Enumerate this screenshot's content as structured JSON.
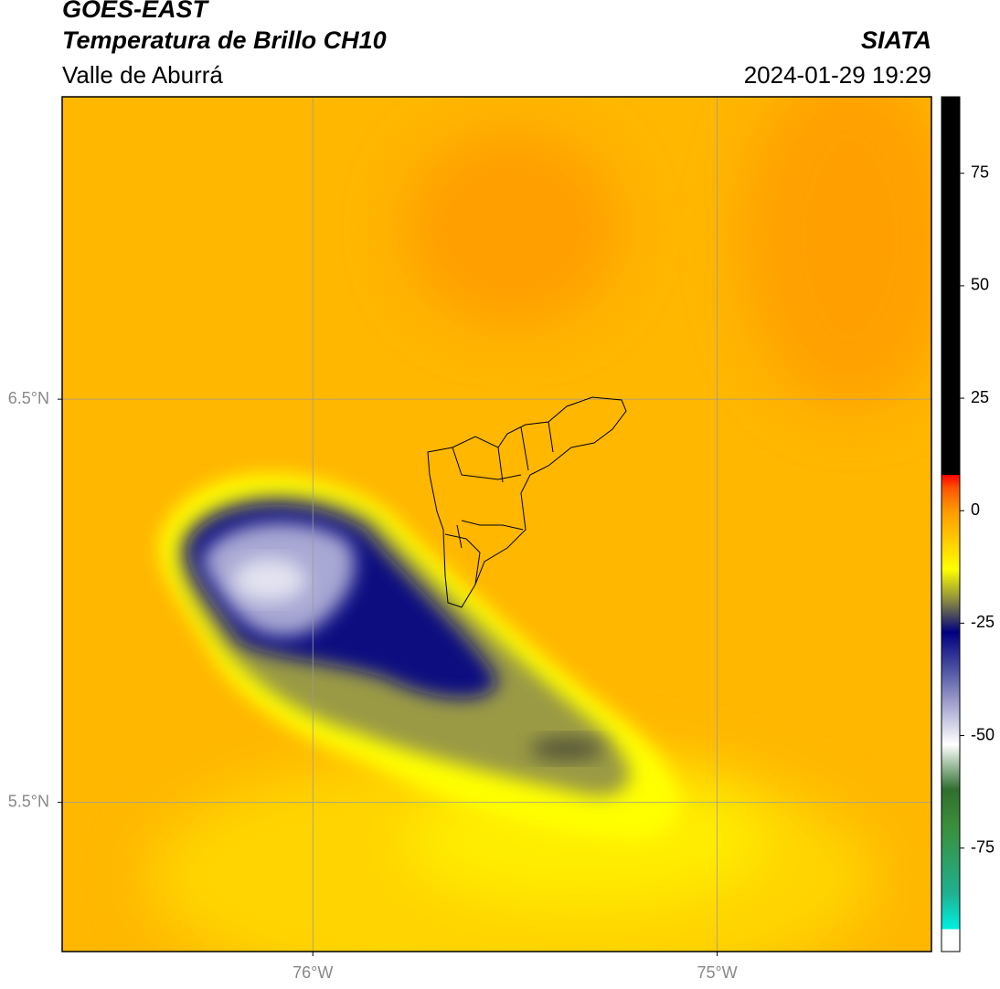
{
  "header": {
    "title": "GOES-EAST",
    "subtitle": "Temperatura de Brillo CH10",
    "region": "Valle de Aburrá",
    "source": "SIATA",
    "datetime": "2024-01-29 19:29"
  },
  "map": {
    "xlim": [
      -76.62,
      -74.47
    ],
    "ylim": [
      5.13,
      7.25
    ],
    "xticks": [
      {
        "value": -76,
        "label": "76°W"
      },
      {
        "value": -75,
        "label": "75°W"
      }
    ],
    "yticks": [
      {
        "value": 6.5,
        "label": "6.5°N"
      },
      {
        "value": 5.5,
        "label": "5.5°N"
      }
    ],
    "grid": true
  },
  "colorbar": {
    "lim": [
      -98,
      92
    ],
    "ticks": [
      75,
      50,
      25,
      0,
      -25,
      -50,
      -75
    ],
    "stops": [
      {
        "value": -98,
        "color": "#ffffff"
      },
      {
        "value": -93,
        "color": "#ffffff"
      },
      {
        "value": -93,
        "color": "#00f0e0"
      },
      {
        "value": -85,
        "color": "#20b090"
      },
      {
        "value": -70,
        "color": "#3a8f3a"
      },
      {
        "value": -62,
        "color": "#2f6f2f"
      },
      {
        "value": -52,
        "color": "#ffffff"
      },
      {
        "value": -45,
        "color": "#b8b8da"
      },
      {
        "value": -35,
        "color": "#4a4fa0"
      },
      {
        "value": -27,
        "color": "#000080"
      },
      {
        "value": -20,
        "color": "#8a8a40"
      },
      {
        "value": -13,
        "color": "#ffff00"
      },
      {
        "value": -8,
        "color": "#ffd700"
      },
      {
        "value": 0,
        "color": "#ff9900"
      },
      {
        "value": 5,
        "color": "#ff5500"
      },
      {
        "value": 8,
        "color": "#ff0000"
      },
      {
        "value": 8,
        "color": "#000000"
      },
      {
        "value": 92,
        "color": "#000000"
      }
    ]
  }
}
